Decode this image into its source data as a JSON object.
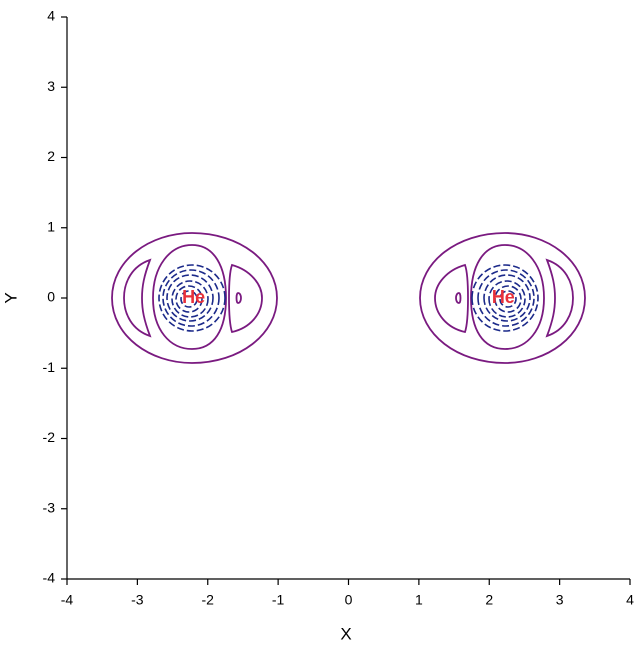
{
  "chart_data": {
    "type": "contour",
    "x_label": "X",
    "y_label": "Y",
    "xlim": [
      -4,
      4
    ],
    "ylim": [
      -4,
      4
    ],
    "xticks": [
      -4,
      -3,
      -2,
      -1,
      0,
      1,
      2,
      3,
      4
    ],
    "yticks": [
      -4,
      -3,
      -2,
      -1,
      0,
      1,
      2,
      3,
      4
    ],
    "annotations": [
      {
        "text": "He",
        "x": -2.2,
        "y": 0,
        "color": "#e8303a"
      },
      {
        "text": "He",
        "x": 2.2,
        "y": 0,
        "color": "#e8303a"
      }
    ]
  }
}
